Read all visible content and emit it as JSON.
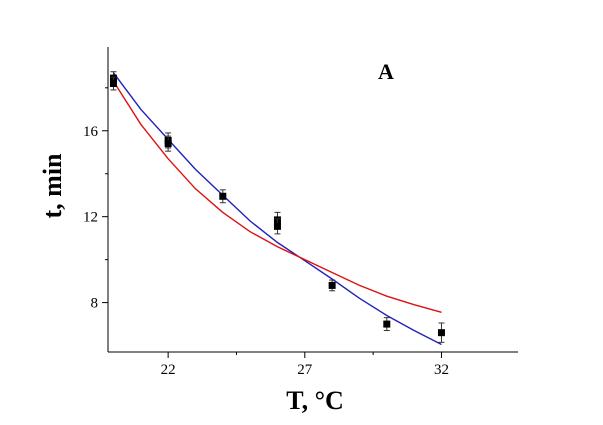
{
  "chart_data": {
    "type": "scatter",
    "panel_label": "A",
    "xlabel": "T, °C",
    "ylabel": "t, min",
    "xlim": [
      19.8,
      34.8
    ],
    "ylim": [
      5.7,
      19.9
    ],
    "xticks": [
      22,
      27,
      32
    ],
    "xtick_labels": [
      "22",
      "27",
      "32"
    ],
    "xminor": [
      24.5,
      29.5
    ],
    "yticks": [
      8,
      12,
      16
    ],
    "ytick_labels": [
      "8",
      "12",
      "16"
    ],
    "yminor": [
      10,
      14,
      18
    ],
    "grid": false,
    "points": [
      {
        "x": 20.0,
        "y": 18.45,
        "err": 0.3
      },
      {
        "x": 20.0,
        "y": 18.2,
        "err": 0.3
      },
      {
        "x": 22.0,
        "y": 15.55,
        "err": 0.35
      },
      {
        "x": 22.0,
        "y": 15.4,
        "err": 0.35
      },
      {
        "x": 24.0,
        "y": 12.95,
        "err": 0.3
      },
      {
        "x": 26.0,
        "y": 11.85,
        "err": 0.35
      },
      {
        "x": 26.0,
        "y": 11.55,
        "err": 0.35
      },
      {
        "x": 28.0,
        "y": 8.8,
        "err": 0.25
      },
      {
        "x": 30.0,
        "y": 7.0,
        "err": 0.3
      },
      {
        "x": 32.0,
        "y": 6.6,
        "err": 0.45
      }
    ],
    "fits": [
      {
        "color": "#2222bb",
        "x": [
          20,
          21,
          22,
          23,
          24,
          25,
          26,
          27,
          28,
          29,
          30,
          31,
          32
        ],
        "y": [
          18.7,
          17.0,
          15.6,
          14.2,
          13.0,
          11.8,
          10.8,
          9.95,
          9.1,
          8.2,
          7.4,
          6.7,
          6.05
        ]
      },
      {
        "color": "#dd1111",
        "x": [
          20,
          21,
          22,
          23,
          24,
          25,
          26,
          27,
          28,
          29,
          30,
          31,
          32
        ],
        "y": [
          18.3,
          16.3,
          14.7,
          13.3,
          12.2,
          11.3,
          10.6,
          10.0,
          9.4,
          8.8,
          8.3,
          7.9,
          7.55
        ]
      }
    ],
    "marker_color": "#000000"
  }
}
